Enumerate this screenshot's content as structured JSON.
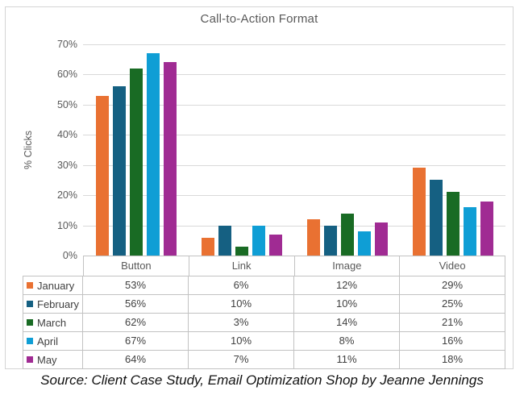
{
  "source_note": "Source: Client Case Study, Email Optimization Shop by Jeanne Jennings",
  "chart_data": {
    "type": "bar",
    "title": "Call-to-Action Format",
    "xlabel": "",
    "ylabel": "% Clicks",
    "ylim": [
      0,
      70
    ],
    "y_tick_step": 10,
    "y_tick_labels": [
      "0%",
      "10%",
      "20%",
      "30%",
      "40%",
      "50%",
      "60%",
      "70%"
    ],
    "grid": true,
    "legend_position": "data-table-left-column",
    "value_suffix": "%",
    "categories": [
      "Button",
      "Link",
      "Image",
      "Video"
    ],
    "series": [
      {
        "name": "January",
        "color": "#E97132",
        "values": [
          53,
          6,
          12,
          29
        ]
      },
      {
        "name": "February",
        "color": "#156082",
        "values": [
          56,
          10,
          10,
          25
        ]
      },
      {
        "name": "March",
        "color": "#196B24",
        "values": [
          62,
          3,
          14,
          21
        ]
      },
      {
        "name": "April",
        "color": "#0F9ED5",
        "values": [
          67,
          10,
          8,
          16
        ]
      },
      {
        "name": "May",
        "color": "#A02B93",
        "values": [
          64,
          7,
          11,
          18
        ]
      }
    ]
  },
  "colors": {
    "gridline": "#d9d9d9",
    "table_border": "#c2c2c2",
    "figure_border": "#d4d4d4",
    "axis_text": "#595959",
    "table_text": "#404040"
  }
}
